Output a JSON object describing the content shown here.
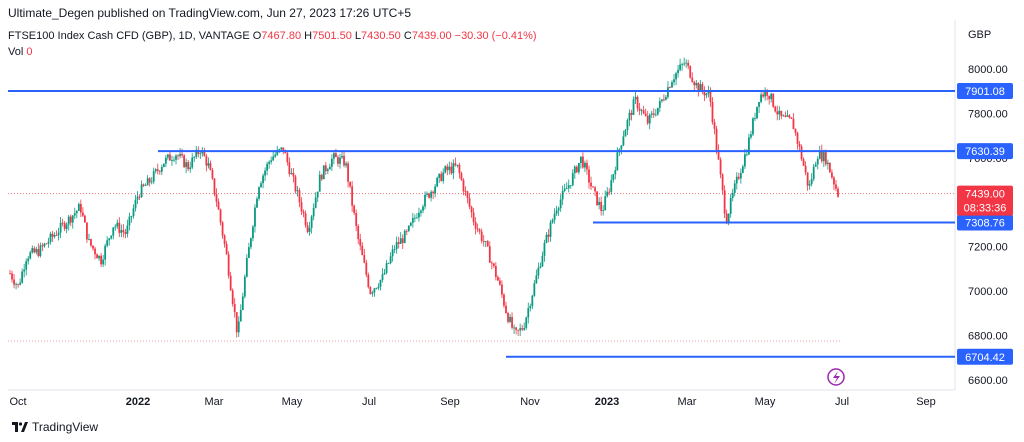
{
  "header": {
    "published_text": "Ultimate_Degen published on TradingView.com, Jun 27, 2023 17:26 UTC+5"
  },
  "legend": {
    "symbol": "FTSE100 Index Cash CFD (GBP), 1D, VANTAGE",
    "o_label": "O",
    "o_value": "7467.80",
    "h_label": "H",
    "h_value": "7501.50",
    "l_label": "L",
    "l_value": "7430.50",
    "c_label": "C",
    "c_value": "7439.00",
    "change": "−30.30 (−0.41%)",
    "vol_label": "Vol",
    "vol_value": "0"
  },
  "branding": {
    "name": "TradingView"
  },
  "colors": {
    "up": "#089981",
    "down": "#f23645",
    "level_line": "#2962ff",
    "price_tag": "#f23645",
    "bg": "#ffffff"
  },
  "chart_data": {
    "type": "line",
    "currency_label": "GBP",
    "y_ticks": [
      "8000.00",
      "7800.00",
      "7600.00",
      "7400.00",
      "7200.00",
      "7000.00",
      "6800.00",
      "6600.00"
    ],
    "y_tick_values": [
      8000,
      7800,
      7600,
      7400,
      7200,
      7000,
      6800,
      6600
    ],
    "x_ticks": [
      {
        "label": "Oct",
        "bold": false
      },
      {
        "label": "2022",
        "bold": true
      },
      {
        "label": "Mar",
        "bold": false
      },
      {
        "label": "May",
        "bold": false
      },
      {
        "label": "Jul",
        "bold": false
      },
      {
        "label": "Sep",
        "bold": false
      },
      {
        "label": "Nov",
        "bold": false
      },
      {
        "label": "2023",
        "bold": true
      },
      {
        "label": "Mar",
        "bold": false
      },
      {
        "label": "May",
        "bold": false
      },
      {
        "label": "Jul",
        "bold": false
      },
      {
        "label": "Sep",
        "bold": false
      }
    ],
    "levels": [
      {
        "value": 7901.08,
        "label": "7901.08"
      },
      {
        "value": 7630.39,
        "label": "7630.39"
      },
      {
        "value": 7308.76,
        "label": "7308.76"
      },
      {
        "value": 6704.42,
        "label": "6704.42"
      }
    ],
    "last_price": {
      "value": 7439.0,
      "label": "7439.00",
      "countdown": "08:33:36"
    },
    "price_path": [
      {
        "t": 0.0,
        "v": 7080
      },
      {
        "t": 0.01,
        "v": 7020
      },
      {
        "t": 0.02,
        "v": 7160
      },
      {
        "t": 0.035,
        "v": 7180
      },
      {
        "t": 0.055,
        "v": 7260
      },
      {
        "t": 0.07,
        "v": 7320
      },
      {
        "t": 0.085,
        "v": 7380
      },
      {
        "t": 0.095,
        "v": 7220
      },
      {
        "t": 0.11,
        "v": 7140
      },
      {
        "t": 0.125,
        "v": 7300
      },
      {
        "t": 0.14,
        "v": 7260
      },
      {
        "t": 0.155,
        "v": 7440
      },
      {
        "t": 0.17,
        "v": 7500
      },
      {
        "t": 0.185,
        "v": 7580
      },
      {
        "t": 0.2,
        "v": 7620
      },
      {
        "t": 0.215,
        "v": 7560
      },
      {
        "t": 0.23,
        "v": 7640
      },
      {
        "t": 0.24,
        "v": 7560
      },
      {
        "t": 0.25,
        "v": 7400
      },
      {
        "t": 0.262,
        "v": 7150
      },
      {
        "t": 0.275,
        "v": 6800
      },
      {
        "t": 0.285,
        "v": 7100
      },
      {
        "t": 0.3,
        "v": 7480
      },
      {
        "t": 0.315,
        "v": 7600
      },
      {
        "t": 0.33,
        "v": 7640
      },
      {
        "t": 0.345,
        "v": 7460
      },
      {
        "t": 0.36,
        "v": 7280
      },
      {
        "t": 0.375,
        "v": 7520
      },
      {
        "t": 0.39,
        "v": 7600
      },
      {
        "t": 0.405,
        "v": 7580
      },
      {
        "t": 0.42,
        "v": 7240
      },
      {
        "t": 0.435,
        "v": 7000
      },
      {
        "t": 0.45,
        "v": 7060
      },
      {
        "t": 0.465,
        "v": 7200
      },
      {
        "t": 0.48,
        "v": 7260
      },
      {
        "t": 0.495,
        "v": 7380
      },
      {
        "t": 0.51,
        "v": 7460
      },
      {
        "t": 0.525,
        "v": 7540
      },
      {
        "t": 0.54,
        "v": 7560
      },
      {
        "t": 0.55,
        "v": 7440
      },
      {
        "t": 0.56,
        "v": 7320
      },
      {
        "t": 0.575,
        "v": 7200
      },
      {
        "t": 0.59,
        "v": 7040
      },
      {
        "t": 0.6,
        "v": 6900
      },
      {
        "t": 0.61,
        "v": 6800
      },
      {
        "t": 0.62,
        "v": 6840
      },
      {
        "t": 0.63,
        "v": 6980
      },
      {
        "t": 0.645,
        "v": 7200
      },
      {
        "t": 0.66,
        "v": 7380
      },
      {
        "t": 0.675,
        "v": 7480
      },
      {
        "t": 0.69,
        "v": 7600
      },
      {
        "t": 0.705,
        "v": 7440
      },
      {
        "t": 0.715,
        "v": 7360
      },
      {
        "t": 0.725,
        "v": 7480
      },
      {
        "t": 0.74,
        "v": 7700
      },
      {
        "t": 0.755,
        "v": 7860
      },
      {
        "t": 0.77,
        "v": 7760
      },
      {
        "t": 0.785,
        "v": 7840
      },
      {
        "t": 0.8,
        "v": 7960
      },
      {
        "t": 0.815,
        "v": 8030
      },
      {
        "t": 0.83,
        "v": 7920
      },
      {
        "t": 0.845,
        "v": 7880
      },
      {
        "t": 0.855,
        "v": 7600
      },
      {
        "t": 0.865,
        "v": 7320
      },
      {
        "t": 0.875,
        "v": 7460
      },
      {
        "t": 0.89,
        "v": 7640
      },
      {
        "t": 0.905,
        "v": 7880
      },
      {
        "t": 0.915,
        "v": 7900
      },
      {
        "t": 0.93,
        "v": 7780
      },
      {
        "t": 0.945,
        "v": 7760
      },
      {
        "t": 0.955,
        "v": 7620
      },
      {
        "t": 0.965,
        "v": 7460
      },
      {
        "t": 0.975,
        "v": 7620
      },
      {
        "t": 0.985,
        "v": 7600
      },
      {
        "t": 1.0,
        "v": 7439
      }
    ]
  }
}
